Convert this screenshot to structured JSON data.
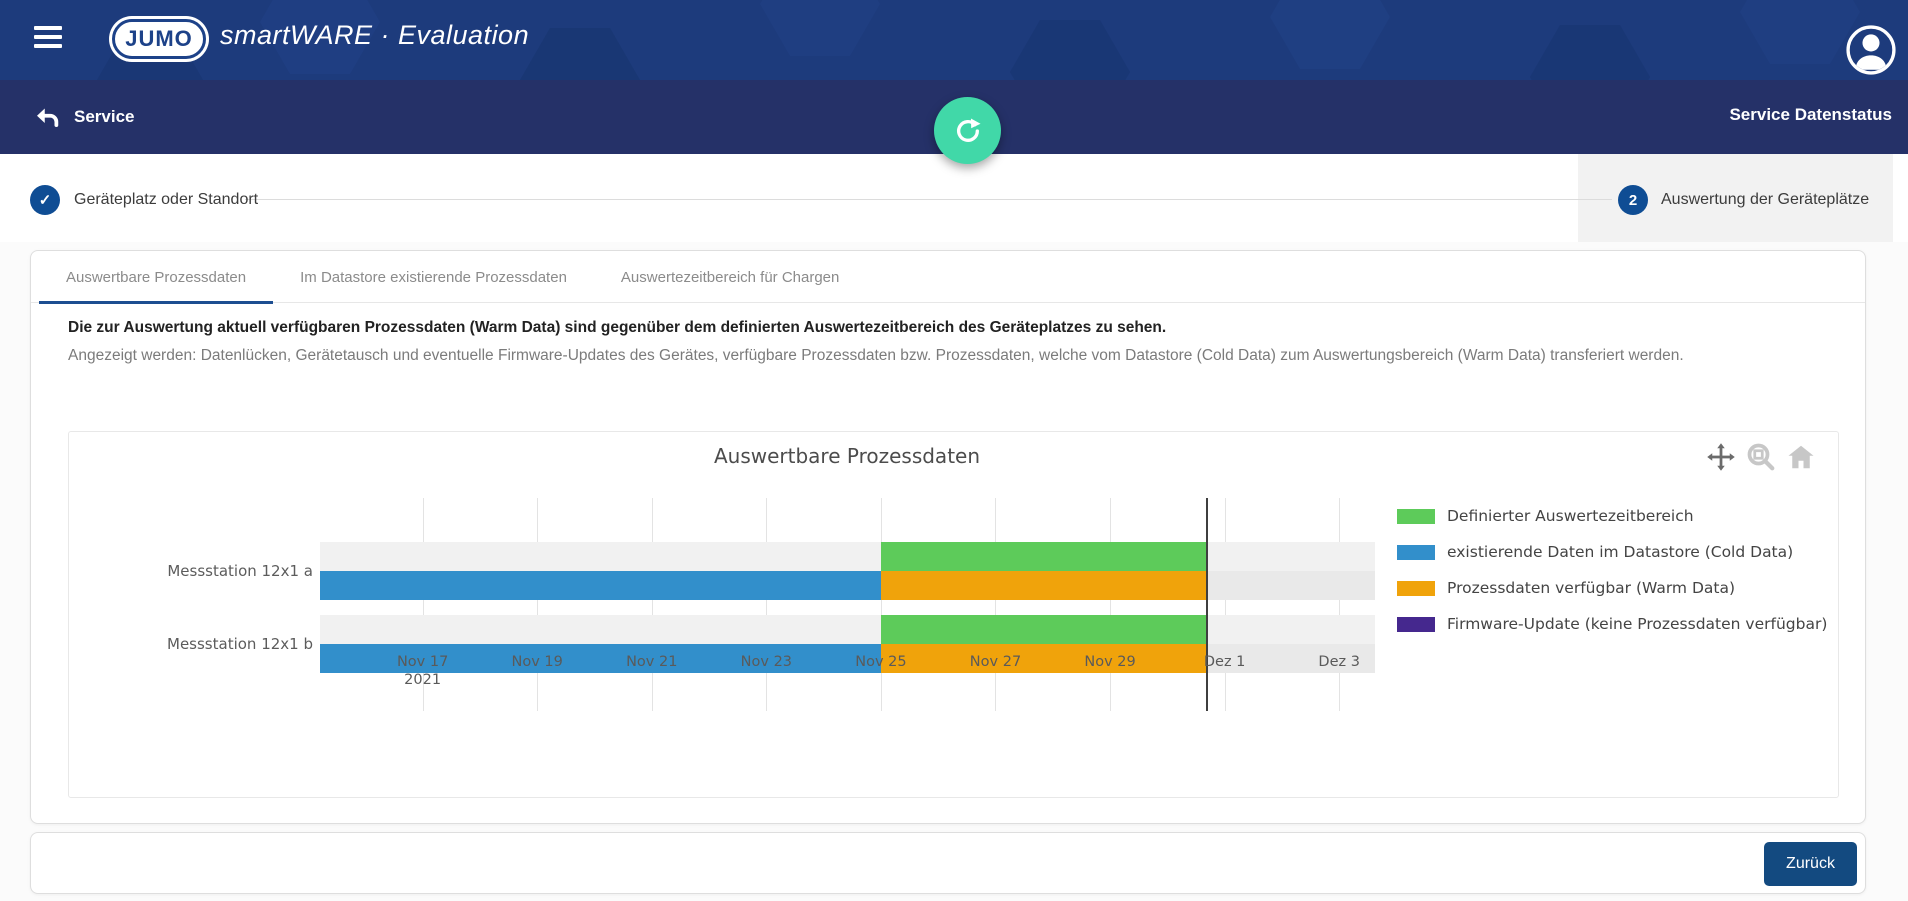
{
  "header": {
    "logo_text": "JUMO",
    "app_title": "smartWARE · Evaluation"
  },
  "service_bar": {
    "back_label": "Service",
    "right_label": "Service Datenstatus"
  },
  "stepper": {
    "step1": {
      "state": "done",
      "label": "Geräteplatz oder Standort"
    },
    "step2": {
      "number": "2",
      "label": "Auswertung der Geräteplätze"
    }
  },
  "tabs": [
    {
      "label": "Auswertbare Prozessdaten",
      "active": true
    },
    {
      "label": "Im Datastore existierende Prozessdaten",
      "active": false
    },
    {
      "label": "Auswertezeitbereich für Chargen",
      "active": false
    }
  ],
  "description": {
    "bold": "Die zur Auswertung aktuell verfügbaren Prozessdaten (Warm Data) sind gegenüber dem definierten Auswertezeitbereich des Geräteplatzes zu sehen.",
    "text": "Angezeigt werden: Datenlücken, Gerätetausch und eventuelle Firmware-Updates des Gerätes, verfügbare Prozessdaten bzw. Prozessdaten, welche vom Datastore (Cold Data) zum Auswertungsbereich (Warm Data) transferiert werden."
  },
  "chart_data": {
    "type": "bar",
    "subtype": "gantt-timeline",
    "title": "Auswertbare Prozessdaten",
    "grid": true,
    "legend_position": "right",
    "x_axis": {
      "unit": "date",
      "domain": [
        "2021-11-15T05:00:00",
        "2021-12-03T15:00:00"
      ],
      "ticks": [
        {
          "date": "2021-11-17T00:00:00",
          "label": "Nov 17",
          "sublabel": "2021"
        },
        {
          "date": "2021-11-19T00:00:00",
          "label": "Nov 19"
        },
        {
          "date": "2021-11-21T00:00:00",
          "label": "Nov 21"
        },
        {
          "date": "2021-11-23T00:00:00",
          "label": "Nov 23"
        },
        {
          "date": "2021-11-25T00:00:00",
          "label": "Nov 25"
        },
        {
          "date": "2021-11-27T00:00:00",
          "label": "Nov 27"
        },
        {
          "date": "2021-11-29T00:00:00",
          "label": "Nov 29"
        },
        {
          "date": "2021-12-01T00:00:00",
          "label": "Dez 1"
        },
        {
          "date": "2021-12-03T00:00:00",
          "label": "Dez 3"
        }
      ]
    },
    "now_line": "2021-11-30T16:00:00",
    "legend": [
      {
        "label": "Definierter Auswertezeitbereich",
        "color": "#5dcb5a"
      },
      {
        "label": "existierende Daten im Datastore (Cold Data)",
        "color": "#328fcb"
      },
      {
        "label": "Prozessdaten verfügbar (Warm Data)",
        "color": "#f0a30b"
      },
      {
        "label": "Firmware-Update (keine Prozessdaten verfügbar)",
        "color": "#45288e"
      }
    ],
    "rows": [
      {
        "label": "Messstation 12x1 a",
        "lanes": {
          "top": [
            {
              "series": "Definierter Auswertezeitbereich",
              "start": "2021-11-25T00:00:00",
              "end": "2021-11-30T16:00:00"
            }
          ],
          "bottom": [
            {
              "series": "existierende Daten im Datastore (Cold Data)",
              "start": "2021-11-15T05:00:00",
              "end": "2021-11-25T00:00:00"
            },
            {
              "series": "Prozessdaten verfügbar (Warm Data)",
              "start": "2021-11-25T00:00:00",
              "end": "2021-11-30T16:00:00"
            }
          ]
        }
      },
      {
        "label": "Messstation 12x1 b",
        "lanes": {
          "top": [
            {
              "series": "Definierter Auswertezeitbereich",
              "start": "2021-11-25T00:00:00",
              "end": "2021-11-30T16:00:00"
            }
          ],
          "bottom": [
            {
              "series": "existierende Daten im Datastore (Cold Data)",
              "start": "2021-11-15T05:00:00",
              "end": "2021-11-25T00:00:00"
            },
            {
              "series": "Prozessdaten verfügbar (Warm Data)",
              "start": "2021-11-25T00:00:00",
              "end": "2021-11-30T16:00:00"
            }
          ]
        }
      }
    ],
    "toolbar_icons": [
      "pan",
      "zoom-box",
      "reset-home"
    ]
  },
  "footer": {
    "back_button": "Zurück"
  },
  "colors": {
    "header_blue": "#1d3b7c",
    "bar_navy": "#253168",
    "accent_teal": "#41d8a8",
    "primary_button": "#134a80",
    "active_tab_underline": "#1d4e91"
  }
}
